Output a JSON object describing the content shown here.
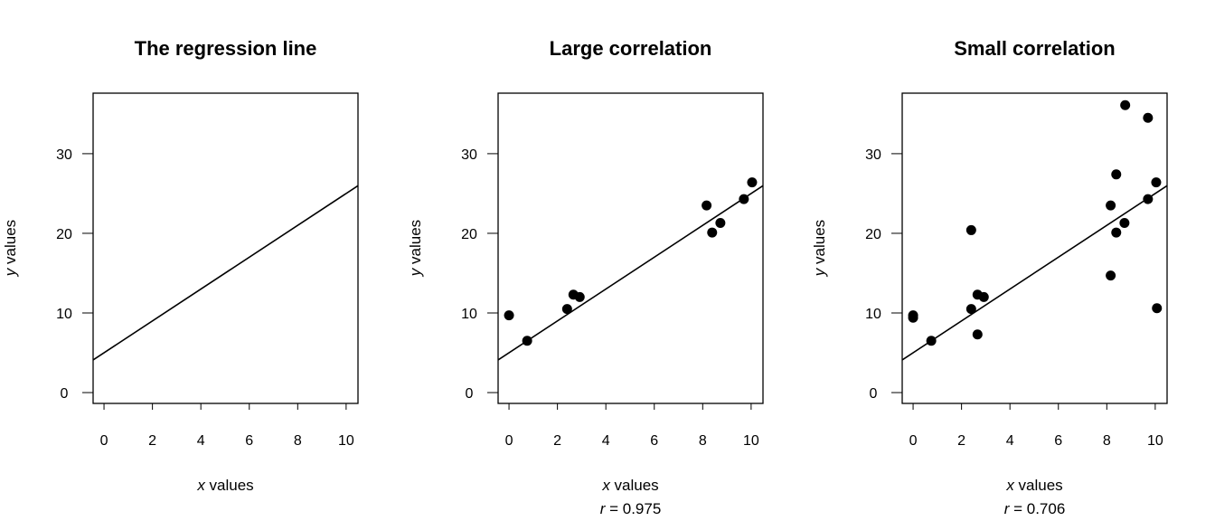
{
  "chart_data": [
    {
      "type": "scatter",
      "title": "The regression line",
      "xlabel_var": "x",
      "xlabel_rest": " values",
      "ylabel_var": "y",
      "ylabel_rest": " values",
      "xlim": [
        -0.45,
        10.49
      ],
      "ylim": [
        -1.36,
        37.6
      ],
      "xticks": [
        0,
        2,
        4,
        6,
        8,
        10
      ],
      "yticks": [
        0,
        10,
        20,
        30
      ],
      "regression_line": {
        "intercept": 5,
        "slope": 2
      },
      "points": [],
      "r_label": ""
    },
    {
      "type": "scatter",
      "title": "Large correlation",
      "xlabel_var": "x",
      "xlabel_rest": " values",
      "ylabel_var": "y",
      "ylabel_rest": " values",
      "xlim": [
        -0.45,
        10.49
      ],
      "ylim": [
        -1.36,
        37.6
      ],
      "xticks": [
        0,
        2,
        4,
        6,
        8,
        10
      ],
      "yticks": [
        0,
        10,
        20,
        30
      ],
      "regression_line": {
        "intercept": 5,
        "slope": 2
      },
      "points": [
        [
          0,
          9.7
        ],
        [
          0.75,
          6.5
        ],
        [
          2.4,
          10.5
        ],
        [
          2.66,
          12.3
        ],
        [
          2.92,
          12.0
        ],
        [
          8.16,
          23.5
        ],
        [
          8.39,
          20.1
        ],
        [
          8.73,
          21.3
        ],
        [
          9.7,
          24.3
        ],
        [
          10.04,
          26.4
        ]
      ],
      "r_var": "r",
      "r_label": " = 0.975"
    },
    {
      "type": "scatter",
      "title": "Small correlation",
      "xlabel_var": "x",
      "xlabel_rest": " values",
      "ylabel_var": "y",
      "ylabel_rest": " values",
      "xlim": [
        -0.45,
        10.49
      ],
      "ylim": [
        -1.36,
        37.6
      ],
      "xticks": [
        0,
        2,
        4,
        6,
        8,
        10
      ],
      "yticks": [
        0,
        10,
        20,
        30
      ],
      "regression_line": {
        "intercept": 5,
        "slope": 2
      },
      "points": [
        [
          0,
          9.7
        ],
        [
          0,
          9.4
        ],
        [
          0.75,
          6.5
        ],
        [
          2.4,
          10.5
        ],
        [
          2.66,
          12.3
        ],
        [
          2.92,
          12.0
        ],
        [
          8.16,
          23.5
        ],
        [
          8.39,
          20.1
        ],
        [
          8.73,
          21.3
        ],
        [
          9.7,
          24.3
        ],
        [
          10.04,
          26.4
        ],
        [
          2.4,
          20.4
        ],
        [
          2.66,
          7.3
        ],
        [
          8.16,
          14.7
        ],
        [
          8.39,
          27.4
        ],
        [
          8.76,
          36.1
        ],
        [
          9.7,
          34.5
        ],
        [
          10.07,
          10.6
        ]
      ],
      "r_var": "r",
      "r_label": " = 0.706"
    }
  ]
}
